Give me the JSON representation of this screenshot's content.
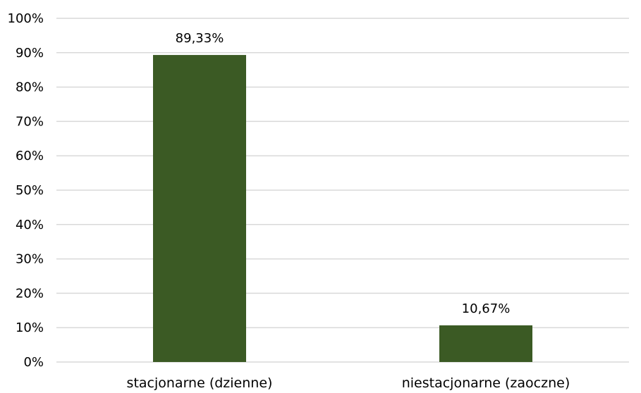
{
  "chart_data": {
    "type": "bar",
    "categories": [
      "stacjonarne (dzienne)",
      "niestacjonarne (zaoczne)"
    ],
    "values": [
      89.33,
      10.67
    ],
    "data_labels": [
      "89,33%",
      "10,67%"
    ],
    "title": "",
    "xlabel": "",
    "ylabel": "",
    "ylim": [
      0,
      100
    ],
    "yticks": [
      0,
      10,
      20,
      30,
      40,
      50,
      60,
      70,
      80,
      90,
      100
    ],
    "ytick_labels": [
      "0%",
      "10%",
      "20%",
      "30%",
      "40%",
      "50%",
      "60%",
      "70%",
      "80%",
      "90%",
      "100%"
    ],
    "grid": true,
    "legend": "none",
    "colors": {
      "bar": "#3b5a24",
      "grid": "#d9d9d9",
      "text": "#000000"
    }
  }
}
